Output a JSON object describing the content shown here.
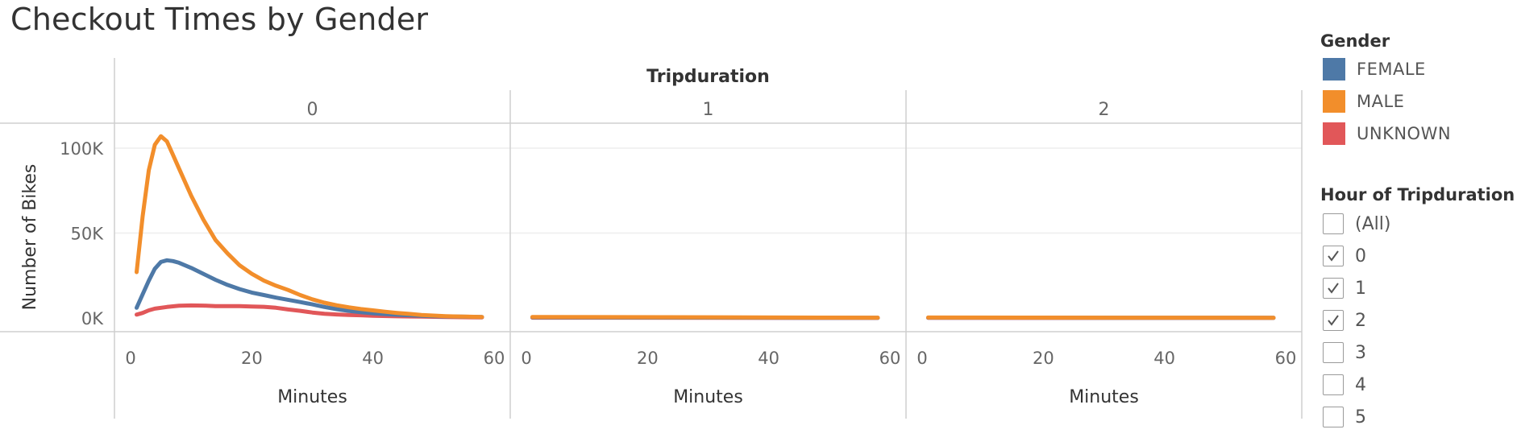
{
  "title": "Checkout Times by Gender",
  "chart_data": {
    "type": "line",
    "title": "Checkout Times by Gender",
    "column_header": "Tripduration",
    "panels": [
      "0",
      "1",
      "2"
    ],
    "xlabel": "Minutes",
    "ylabel": "Number of Bikes",
    "xlim": [
      0,
      60
    ],
    "ylim": [
      0,
      110000
    ],
    "x_ticks": [
      0,
      20,
      40,
      60
    ],
    "x_tick_labels": [
      "0",
      "20",
      "40",
      "60"
    ],
    "y_ticks": [
      0,
      50000,
      100000
    ],
    "y_tick_labels": [
      "0K",
      "50K",
      "100K"
    ],
    "grid": true,
    "legend_position": "right",
    "series": [
      {
        "name": "FEMALE",
        "color": "#4e79a7",
        "panels": {
          "0": [
            [
              1,
              6000
            ],
            [
              2,
              14000
            ],
            [
              3,
              22000
            ],
            [
              4,
              29000
            ],
            [
              5,
              33000
            ],
            [
              6,
              34000
            ],
            [
              7,
              33500
            ],
            [
              8,
              32500
            ],
            [
              10,
              29500
            ],
            [
              12,
              26000
            ],
            [
              14,
              22500
            ],
            [
              16,
              19500
            ],
            [
              18,
              17000
            ],
            [
              20,
              15000
            ],
            [
              22,
              13500
            ],
            [
              24,
              12000
            ],
            [
              26,
              10700
            ],
            [
              28,
              9400
            ],
            [
              30,
              8000
            ],
            [
              32,
              6500
            ],
            [
              34,
              5200
            ],
            [
              36,
              4200
            ],
            [
              38,
              3400
            ],
            [
              40,
              2800
            ],
            [
              42,
              2300
            ],
            [
              44,
              1900
            ],
            [
              46,
              1600
            ],
            [
              48,
              1300
            ],
            [
              50,
              1100
            ],
            [
              52,
              900
            ],
            [
              54,
              800
            ],
            [
              56,
              700
            ],
            [
              58,
              600
            ]
          ],
          "1": [
            [
              1,
              400
            ],
            [
              58,
              100
            ]
          ],
          "2": [
            [
              1,
              200
            ],
            [
              58,
              100
            ]
          ]
        }
      },
      {
        "name": "MALE",
        "color": "#f28e2b",
        "panels": {
          "0": [
            [
              1,
              27000
            ],
            [
              2,
              60000
            ],
            [
              3,
              87000
            ],
            [
              4,
              102000
            ],
            [
              5,
              107000
            ],
            [
              6,
              104000
            ],
            [
              7,
              96000
            ],
            [
              8,
              88000
            ],
            [
              10,
              72000
            ],
            [
              12,
              58000
            ],
            [
              14,
              46000
            ],
            [
              16,
              38000
            ],
            [
              18,
              31000
            ],
            [
              20,
              26000
            ],
            [
              22,
              22000
            ],
            [
              24,
              19000
            ],
            [
              26,
              16500
            ],
            [
              28,
              13500
            ],
            [
              30,
              11000
            ],
            [
              32,
              9000
            ],
            [
              34,
              7500
            ],
            [
              36,
              6300
            ],
            [
              38,
              5300
            ],
            [
              40,
              4500
            ],
            [
              42,
              3700
            ],
            [
              44,
              3000
            ],
            [
              46,
              2400
            ],
            [
              48,
              1800
            ],
            [
              50,
              1400
            ],
            [
              52,
              1100
            ],
            [
              54,
              900
            ],
            [
              56,
              750
            ],
            [
              58,
              600
            ]
          ],
          "1": [
            [
              1,
              600
            ],
            [
              58,
              200
            ]
          ],
          "2": [
            [
              1,
              300
            ],
            [
              58,
              150
            ]
          ]
        }
      },
      {
        "name": "UNKNOWN",
        "color": "#e15759",
        "panels": {
          "0": [
            [
              1,
              2000
            ],
            [
              2,
              3000
            ],
            [
              3,
              4500
            ],
            [
              4,
              5500
            ],
            [
              6,
              6500
            ],
            [
              8,
              7200
            ],
            [
              10,
              7400
            ],
            [
              12,
              7300
            ],
            [
              14,
              7000
            ],
            [
              16,
              7000
            ],
            [
              18,
              7000
            ],
            [
              20,
              6800
            ],
            [
              22,
              6600
            ],
            [
              24,
              6000
            ],
            [
              26,
              5000
            ],
            [
              28,
              4200
            ],
            [
              30,
              3200
            ],
            [
              32,
              2500
            ],
            [
              34,
              2100
            ],
            [
              36,
              1800
            ],
            [
              38,
              1600
            ],
            [
              40,
              1300
            ],
            [
              44,
              1000
            ],
            [
              48,
              800
            ],
            [
              52,
              600
            ],
            [
              56,
              450
            ],
            [
              58,
              400
            ]
          ],
          "1": [
            [
              1,
              200
            ],
            [
              58,
              50
            ]
          ],
          "2": [
            [
              1,
              100
            ],
            [
              58,
              50
            ]
          ]
        }
      }
    ]
  },
  "legend": {
    "title": "Gender",
    "items": [
      {
        "label": "FEMALE",
        "color": "#4e79a7"
      },
      {
        "label": "MALE",
        "color": "#f28e2b"
      },
      {
        "label": "UNKNOWN",
        "color": "#e15759"
      }
    ]
  },
  "filter": {
    "title": "Hour of Tripduration",
    "items": [
      {
        "label": "(All)",
        "checked": false
      },
      {
        "label": "0",
        "checked": true
      },
      {
        "label": "1",
        "checked": true
      },
      {
        "label": "2",
        "checked": true
      },
      {
        "label": "3",
        "checked": false
      },
      {
        "label": "4",
        "checked": false
      },
      {
        "label": "5",
        "checked": false
      }
    ]
  }
}
